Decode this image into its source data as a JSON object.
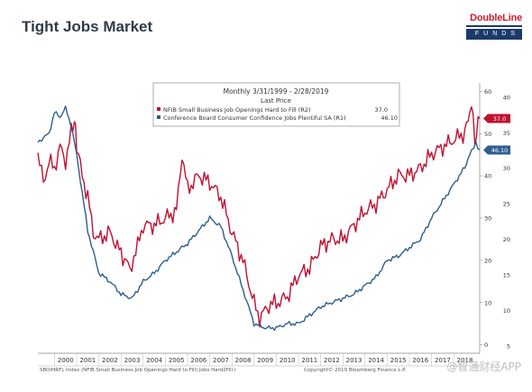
{
  "slide": {
    "title": "Tight Jobs Market",
    "logo_top": "DoubleLine",
    "logo_bottom": "FUNDS"
  },
  "watermark": "@智通财经APP",
  "colors": {
    "red_series": "#c01030",
    "blue_series": "#2e5e8e",
    "logo_red": "#c8202f",
    "logo_navy": "#1a3a6a"
  },
  "chart_data": {
    "type": "line",
    "title": "Monthly 3/31/1999 - 2/28/2019",
    "subtitle": "Last Price",
    "x_start_year": 1999.25,
    "x_end_year": 2019.17,
    "x_tick_labels": [
      "2000",
      "2001",
      "2002",
      "2003",
      "2004",
      "2005",
      "2006",
      "2007",
      "2008",
      "2009",
      "2010",
      "2011",
      "2012",
      "2013",
      "2014",
      "2015",
      "2016",
      "2017",
      "2018"
    ],
    "y_left_ticks": [
      "0",
      "10",
      "20",
      "30",
      "40",
      "50",
      "60"
    ],
    "y_left_range": [
      -2,
      62
    ],
    "y_right_ticks": [
      "5",
      "10",
      "15",
      "20",
      "25",
      "30",
      "35",
      "40"
    ],
    "y_right_range": [
      4,
      42
    ],
    "grid": false,
    "legend_placement": "top-center",
    "series": [
      {
        "name": "NFIB Small Business Job Openings Hard to Fill (R2)",
        "axis": "right",
        "last_value": "37.0",
        "points": [
          [
            1999.25,
            32
          ],
          [
            1999.5,
            28
          ],
          [
            1999.75,
            31
          ],
          [
            2000.0,
            30
          ],
          [
            2000.25,
            33
          ],
          [
            2000.5,
            31
          ],
          [
            2000.75,
            35
          ],
          [
            2000.9,
            37
          ],
          [
            2001.0,
            33
          ],
          [
            2001.25,
            29
          ],
          [
            2001.5,
            26
          ],
          [
            2001.75,
            21
          ],
          [
            2002.0,
            20
          ],
          [
            2002.5,
            21
          ],
          [
            2003.0,
            18
          ],
          [
            2003.4,
            16
          ],
          [
            2003.75,
            19
          ],
          [
            2004.0,
            22
          ],
          [
            2004.5,
            22
          ],
          [
            2005.0,
            23
          ],
          [
            2005.5,
            24
          ],
          [
            2005.75,
            32
          ],
          [
            2006.0,
            27
          ],
          [
            2006.5,
            29
          ],
          [
            2007.0,
            28
          ],
          [
            2007.5,
            26
          ],
          [
            2008.0,
            21
          ],
          [
            2008.5,
            17
          ],
          [
            2009.0,
            11
          ],
          [
            2009.25,
            9
          ],
          [
            2009.5,
            10
          ],
          [
            2009.75,
            11
          ],
          [
            2010.0,
            11
          ],
          [
            2010.5,
            12
          ],
          [
            2011.0,
            15
          ],
          [
            2011.5,
            16
          ],
          [
            2012.0,
            19
          ],
          [
            2012.5,
            20
          ],
          [
            2013.0,
            20
          ],
          [
            2013.5,
            22
          ],
          [
            2014.0,
            24
          ],
          [
            2014.5,
            25
          ],
          [
            2015.0,
            27
          ],
          [
            2015.5,
            29
          ],
          [
            2016.0,
            29
          ],
          [
            2016.5,
            30
          ],
          [
            2017.0,
            32
          ],
          [
            2017.5,
            33
          ],
          [
            2018.0,
            34
          ],
          [
            2018.5,
            35
          ],
          [
            2018.8,
            39
          ],
          [
            2018.95,
            34
          ],
          [
            2019.17,
            37
          ]
        ]
      },
      {
        "name": "Conference Board Consumer Confidence Jobs Plentiful SA (R1)",
        "axis": "left",
        "last_value": "46.10",
        "points": [
          [
            1999.25,
            48
          ],
          [
            1999.5,
            49
          ],
          [
            1999.75,
            50
          ],
          [
            2000.0,
            55
          ],
          [
            2000.25,
            54
          ],
          [
            2000.5,
            56
          ],
          [
            2000.75,
            52
          ],
          [
            2001.0,
            45
          ],
          [
            2001.25,
            36
          ],
          [
            2001.5,
            27
          ],
          [
            2001.75,
            22
          ],
          [
            2002.0,
            17
          ],
          [
            2002.5,
            15
          ],
          [
            2003.0,
            12
          ],
          [
            2003.5,
            11
          ],
          [
            2004.0,
            15
          ],
          [
            2004.5,
            17
          ],
          [
            2005.0,
            20
          ],
          [
            2005.5,
            22
          ],
          [
            2006.0,
            24
          ],
          [
            2006.5,
            27
          ],
          [
            2007.0,
            30
          ],
          [
            2007.5,
            28
          ],
          [
            2008.0,
            21
          ],
          [
            2008.5,
            13
          ],
          [
            2009.0,
            5
          ],
          [
            2009.5,
            4
          ],
          [
            2010.0,
            4
          ],
          [
            2010.5,
            5
          ],
          [
            2011.0,
            5
          ],
          [
            2011.5,
            7
          ],
          [
            2012.0,
            9
          ],
          [
            2012.5,
            10
          ],
          [
            2013.0,
            11
          ],
          [
            2013.5,
            12
          ],
          [
            2014.0,
            14
          ],
          [
            2014.5,
            16
          ],
          [
            2015.0,
            20
          ],
          [
            2015.5,
            21
          ],
          [
            2016.0,
            23
          ],
          [
            2016.5,
            25
          ],
          [
            2017.0,
            30
          ],
          [
            2017.5,
            34
          ],
          [
            2018.0,
            38
          ],
          [
            2018.5,
            42
          ],
          [
            2018.8,
            46
          ],
          [
            2019.0,
            48
          ],
          [
            2019.17,
            46.1
          ]
        ]
      }
    ],
    "footer_left": "SBOIHRFL Index (NFIB Small Business Job Openings Hard to Fill) Jobs Hard2Fill r",
    "footer_right": "Copyright© 2019 Bloomberg Finance L.P."
  }
}
